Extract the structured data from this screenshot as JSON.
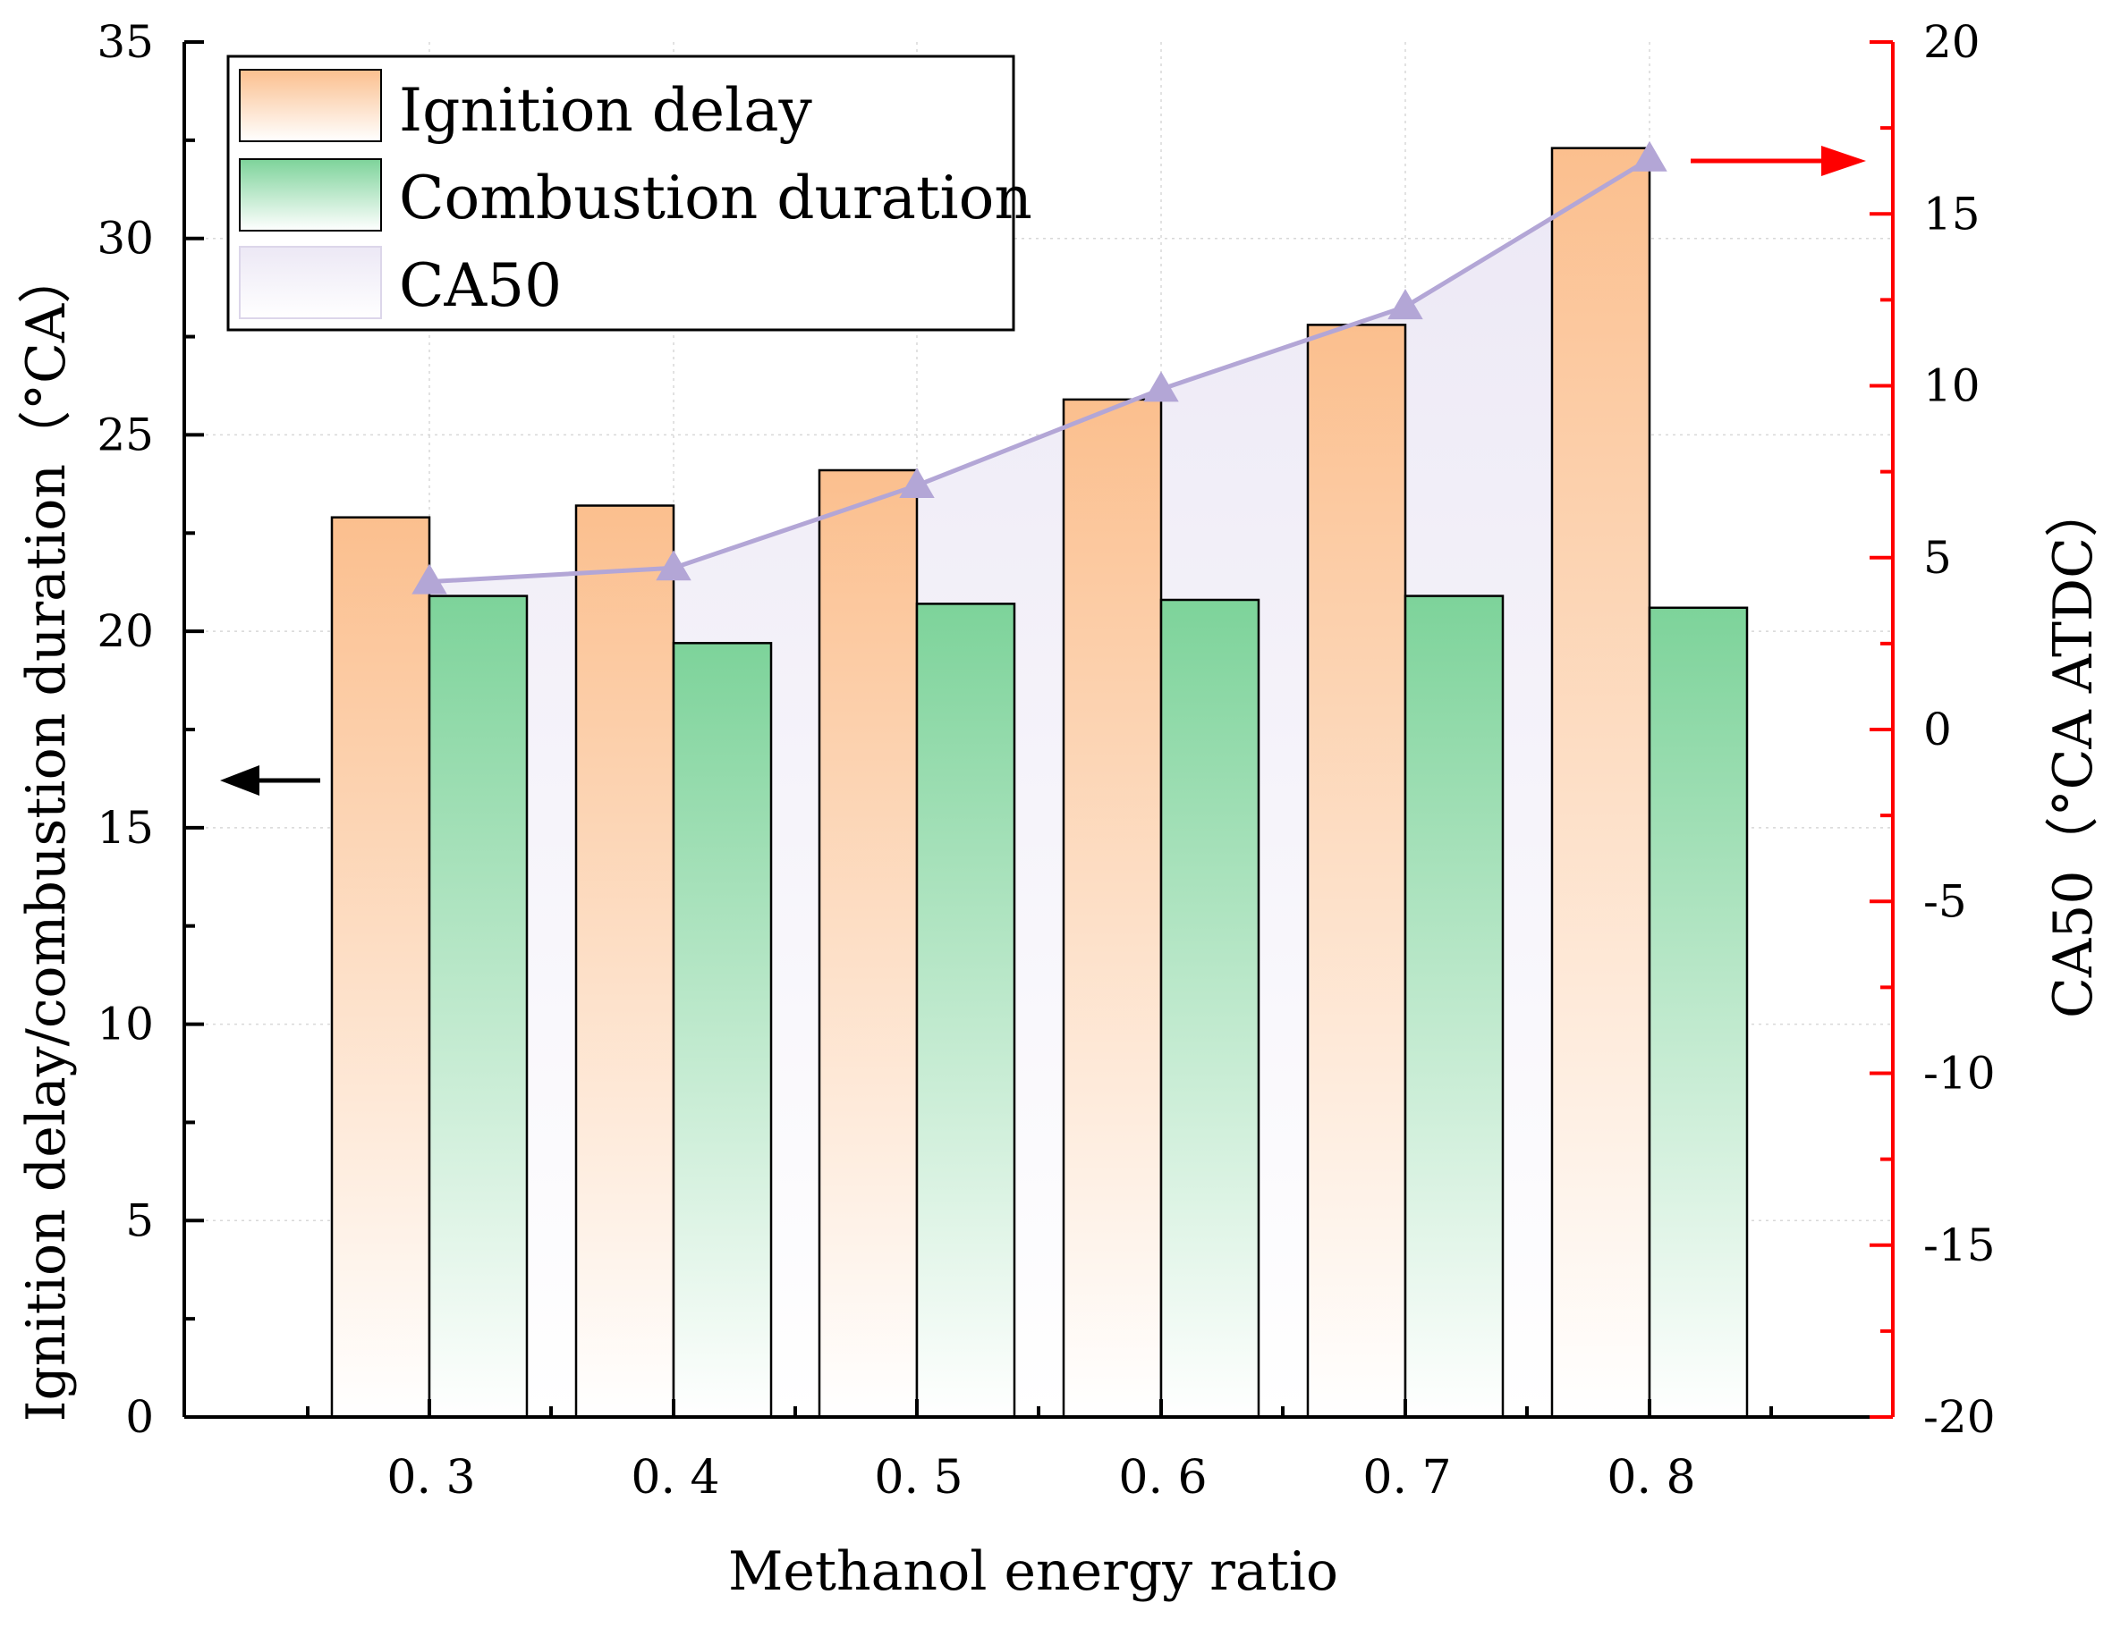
{
  "chart_data": {
    "type": "bar",
    "categories": [
      "0. 3",
      "0. 4",
      "0. 5",
      "0. 6",
      "0. 7",
      "0. 8"
    ],
    "series": [
      {
        "name": "Ignition delay",
        "axis": "left",
        "kind": "bar",
        "values": [
          22.9,
          23.2,
          24.1,
          25.9,
          27.8,
          32.3
        ]
      },
      {
        "name": "Combustion duration",
        "axis": "left",
        "kind": "bar",
        "values": [
          20.9,
          19.7,
          20.7,
          20.8,
          20.9,
          20.6
        ]
      },
      {
        "name": "CA50",
        "axis": "right",
        "kind": "line-area",
        "values": [
          4.3,
          4.7,
          7.1,
          9.9,
          12.3,
          16.6
        ]
      }
    ],
    "xlabel": "Methanol energy ratio",
    "ylabel": "Ignition delay/combustion duration（°CA）",
    "y2label": "CA50（°CA ATDC）",
    "ylim": [
      0,
      35
    ],
    "y2lim": [
      -20,
      20
    ],
    "yticks": [
      "0",
      "5",
      "10",
      "15",
      "20",
      "25",
      "30",
      "35"
    ],
    "y2ticks": [
      "-20",
      "-15",
      "-10",
      "-5",
      "0",
      "5",
      "10",
      "15",
      "20"
    ],
    "grid": true,
    "legend_position": "top-left",
    "colors": {
      "ignition_top": "#fbbf8e",
      "ignition_bottom": "#ffffff",
      "combustion_top": "#7dd39a",
      "combustion_bottom": "#ffffff",
      "ca50_line": "#b3a6d6",
      "ca50_fill": "#ece8f5",
      "right_axis": "#ff0000",
      "left_arrow": "#000000",
      "right_arrow": "#ff0000"
    }
  }
}
